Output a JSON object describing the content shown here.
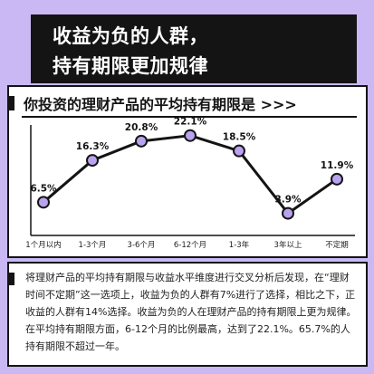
{
  "header": {
    "line1": "收益为负的人群，",
    "line2": "持有期限更加规律"
  },
  "chart_title": "你投资的理财产品的平均持有期限是 >>>",
  "chart_data": {
    "type": "line",
    "categories": [
      "1个月以内",
      "1-3个月",
      "3-6个月",
      "6-12个月",
      "1-3年",
      "3年以上",
      "不定期"
    ],
    "values": [
      6.5,
      16.3,
      20.8,
      22.1,
      18.5,
      3.9,
      11.9
    ],
    "data_labels": [
      "6.5%",
      "16.3%",
      "20.8%",
      "22.1%",
      "18.5%",
      "3.9%",
      "11.9%"
    ],
    "ylim": [
      0,
      25
    ],
    "grid": false,
    "colors": {
      "line": "#141414",
      "marker": "#b9a3f0"
    }
  },
  "description": "将理财产品的平均持有期限与收益水平维度进行交叉分析后发现，在“理财时间不定期”这一选项上，收益为负的人群有7%进行了选择，相比之下，正收益的人群有14%选择。收益为负的人在理财产品的持有期限上更为规律。在平均持有期限方面，6-12个月的比例最高，达到了22.1%。65.7%的人持有期限不超过一年。"
}
